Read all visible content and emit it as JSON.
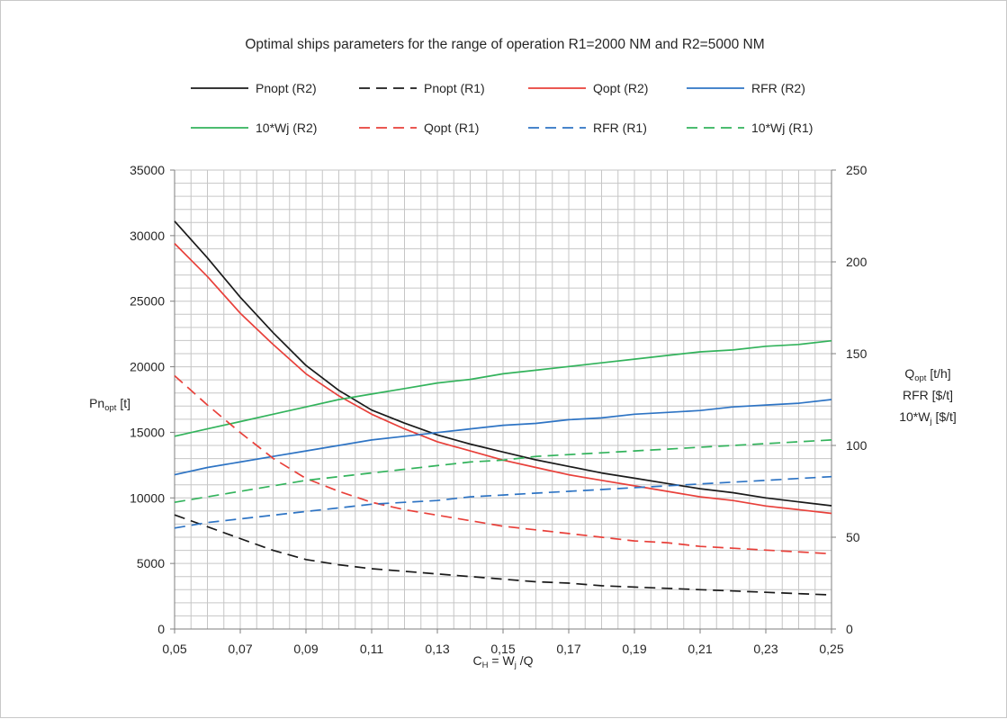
{
  "chart_data": {
    "type": "line",
    "title": "Optimal ships parameters for the range of operation R1=2000 NM and R2=5000 NM",
    "xlabel": {
      "main": "C",
      "sub": "H",
      "mid": " = W",
      "sub2": "j",
      "end": " /Q"
    },
    "ylabel_left": {
      "main": "Pn",
      "sub": "opt",
      "end": " [t]"
    },
    "ylabel_right": [
      {
        "main": "Q",
        "sub": "opt",
        "end": " [t/h]"
      },
      {
        "main": "RFR [$/t]",
        "sub": "",
        "end": ""
      },
      {
        "main": "10*W",
        "sub": "j",
        "end": " [$/t]"
      }
    ],
    "xlim": [
      0.05,
      0.25
    ],
    "ylim_left": [
      0,
      35000
    ],
    "ylim_right": [
      0,
      250
    ],
    "x_ticks": [
      "0,05",
      "0,07",
      "0,09",
      "0,11",
      "0,13",
      "0,15",
      "0,17",
      "0,19",
      "0,21",
      "0,23",
      "0,25"
    ],
    "y_left_ticks": [
      "0",
      "5000",
      "10000",
      "15000",
      "20000",
      "25000",
      "30000",
      "35000"
    ],
    "y_right_ticks": [
      "0",
      "50",
      "100",
      "150",
      "200",
      "250"
    ],
    "grid": true,
    "legend_position": "top",
    "x": [
      0.05,
      0.06,
      0.07,
      0.08,
      0.09,
      0.1,
      0.11,
      0.12,
      0.13,
      0.14,
      0.15,
      0.16,
      0.17,
      0.18,
      0.19,
      0.2,
      0.21,
      0.22,
      0.23,
      0.24,
      0.25
    ],
    "series": [
      {
        "name": "Pnopt (R2)",
        "axis": "left",
        "color": "#1a1a1a",
        "dash": "solid",
        "values": [
          31100,
          28300,
          25300,
          22600,
          20100,
          18200,
          16700,
          15700,
          14800,
          14100,
          13500,
          12900,
          12400,
          11900,
          11500,
          11100,
          10700,
          10400,
          10000,
          9700,
          9400
        ]
      },
      {
        "name": "Pnopt (R1)",
        "axis": "left",
        "color": "#1a1a1a",
        "dash": "dashed",
        "values": [
          8700,
          7800,
          6900,
          6000,
          5300,
          4900,
          4600,
          4400,
          4200,
          4000,
          3800,
          3600,
          3500,
          3300,
          3200,
          3100,
          3000,
          2900,
          2800,
          2700,
          2600
        ]
      },
      {
        "name": "Qopt (R2)",
        "axis": "right",
        "color": "#e8403a",
        "dash": "solid",
        "values": [
          210,
          192,
          172,
          155,
          139,
          127,
          117,
          109,
          102,
          97,
          92,
          88,
          84,
          81,
          78,
          75,
          72,
          70,
          67,
          65,
          63
        ]
      },
      {
        "name": "RFR (R2)",
        "axis": "right",
        "color": "#2e74c4",
        "dash": "solid",
        "values": [
          84,
          88,
          91,
          94,
          97,
          100,
          103,
          105,
          107,
          109,
          111,
          112,
          114,
          115,
          117,
          118,
          119,
          121,
          122,
          123,
          125
        ]
      },
      {
        "name": "10*Wj (R2)",
        "axis": "right",
        "color": "#33b35c",
        "dash": "solid",
        "values": [
          105,
          109,
          113,
          117,
          121,
          125,
          128,
          131,
          134,
          136,
          139,
          141,
          143,
          145,
          147,
          149,
          151,
          152,
          154,
          155,
          157
        ]
      },
      {
        "name": "Qopt (R1)",
        "axis": "right",
        "color": "#e8403a",
        "dash": "dashed",
        "values": [
          138,
          122,
          107,
          93,
          82,
          75,
          69,
          65,
          62,
          59,
          56,
          54,
          52,
          50,
          48,
          47,
          45,
          44,
          43,
          42,
          41
        ]
      },
      {
        "name": "RFR (R1)",
        "axis": "right",
        "color": "#2e74c4",
        "dash": "dashed",
        "values": [
          55,
          58,
          60,
          62,
          64,
          66,
          68,
          69,
          70,
          72,
          73,
          74,
          75,
          76,
          77,
          78,
          79,
          80,
          81,
          82,
          83
        ]
      },
      {
        "name": "10*Wj (R1)",
        "axis": "right",
        "color": "#33b35c",
        "dash": "dashed",
        "values": [
          69,
          72,
          75,
          78,
          81,
          83,
          85,
          87,
          89,
          91,
          92,
          94,
          95,
          96,
          97,
          98,
          99,
          100,
          101,
          102,
          103
        ]
      }
    ]
  }
}
